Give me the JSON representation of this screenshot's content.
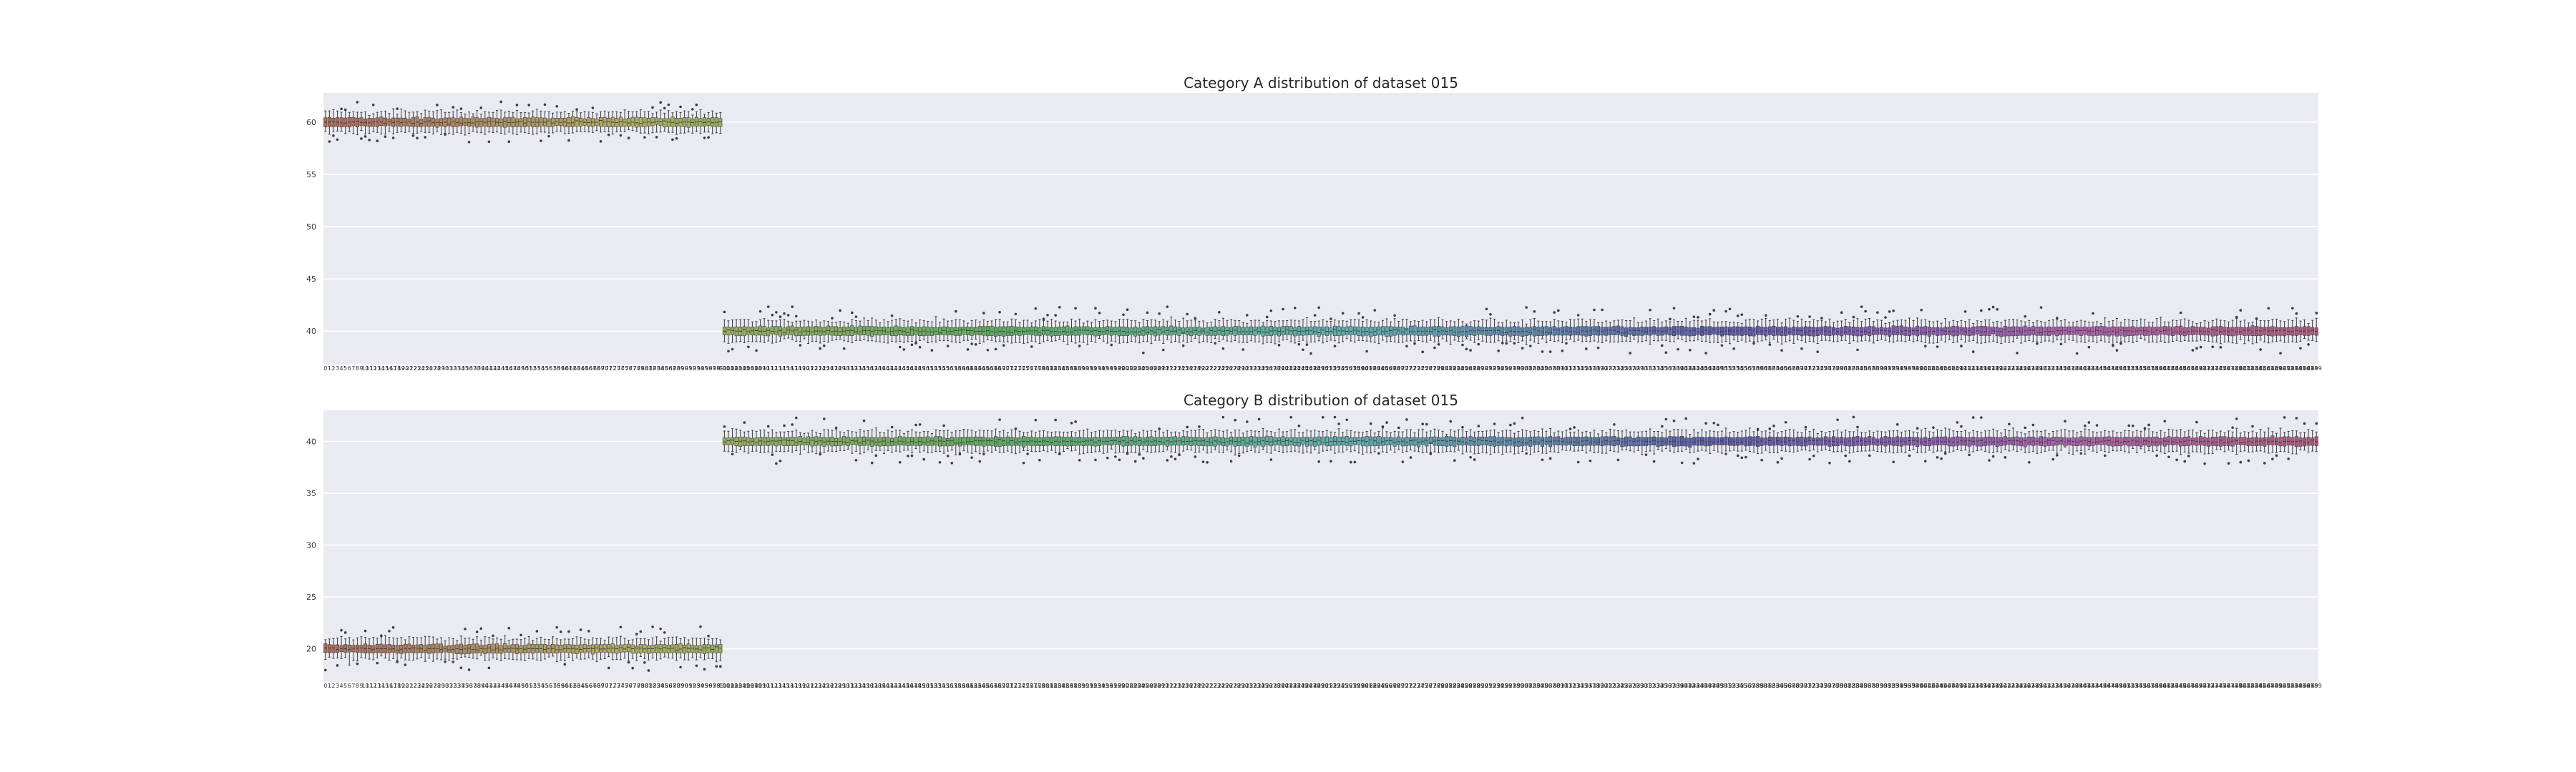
{
  "chart_data": [
    {
      "type": "box",
      "title": "Category A distribution of dataset 015",
      "xlabel": "",
      "ylabel": "",
      "yticks": [
        40,
        45,
        50,
        55,
        60
      ],
      "ylim": [
        36.8,
        62.8
      ],
      "grid": true,
      "categories_count": 500,
      "categories_label_pattern": "0, 1, 2, ... 499",
      "groups": [
        {
          "from": 0,
          "to": 99,
          "median": 60,
          "q1": 59.6,
          "q3": 60.4,
          "whisker_low": 59.0,
          "whisker_high": 61.0,
          "outliers_range": [
            58.2,
            61.8
          ]
        },
        {
          "from": 100,
          "to": 499,
          "median": 40,
          "q1": 39.6,
          "q3": 40.4,
          "whisker_low": 39.0,
          "whisker_high": 41.0,
          "outliers_range": [
            38.0,
            42.2
          ]
        }
      ]
    },
    {
      "type": "box",
      "title": "Category B distribution of dataset 015",
      "xlabel": "",
      "ylabel": "",
      "yticks": [
        20,
        25,
        30,
        35,
        40
      ],
      "ylim": [
        16.8,
        43
      ],
      "grid": true,
      "categories_count": 500,
      "categories_label_pattern": "0, 1, 2, ... 499",
      "groups": [
        {
          "from": 0,
          "to": 99,
          "median": 20,
          "q1": 19.6,
          "q3": 20.4,
          "whisker_low": 19.0,
          "whisker_high": 21.0,
          "outliers_range": [
            18.0,
            22.0
          ]
        },
        {
          "from": 100,
          "to": 499,
          "median": 40,
          "q1": 39.6,
          "q3": 40.4,
          "whisker_low": 39.0,
          "whisker_high": 41.0,
          "outliers_range": [
            38.0,
            42.2
          ]
        }
      ]
    }
  ],
  "colors": {
    "figure_bg": "#ffffff",
    "axes_bg": "#eaeaf2",
    "grid": "#ffffff",
    "whisker": "#3d3d3d"
  }
}
